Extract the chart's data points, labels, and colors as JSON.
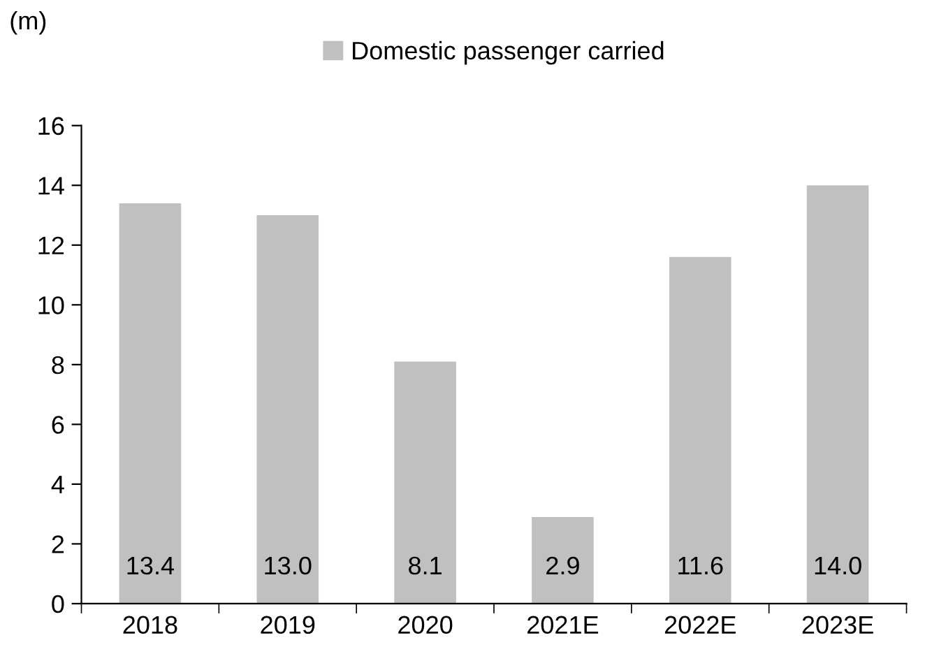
{
  "chart_data": {
    "type": "bar",
    "ylabel": "(m)",
    "categories": [
      "2018",
      "2019",
      "2020",
      "2021E",
      "2022E",
      "2023E"
    ],
    "series": [
      {
        "name": "Domestic passenger carried",
        "color": "#c0c0c0",
        "values": [
          13.4,
          13.0,
          8.1,
          2.9,
          11.6,
          14.0
        ],
        "value_labels": [
          "13.4",
          "13.0",
          "8.1",
          "2.9",
          "11.6",
          "14.0"
        ]
      }
    ],
    "ylim": [
      0,
      16
    ],
    "yticks": [
      0,
      2,
      4,
      6,
      8,
      10,
      12,
      14,
      16
    ],
    "grid": false,
    "legend": "top"
  }
}
